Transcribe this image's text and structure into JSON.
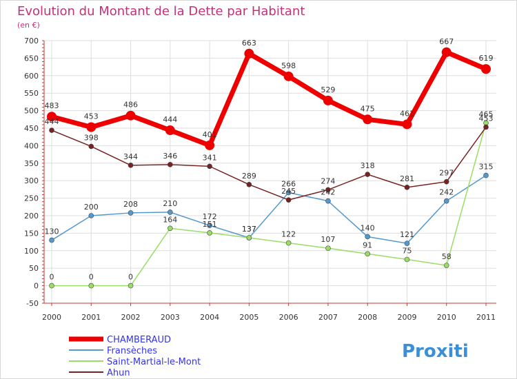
{
  "title": "Evolution du Montant de la Dette par Habitant",
  "subtitle": "(en €)",
  "logo_text": "Proxiti",
  "colors": {
    "title": "#c6307a",
    "grid": "#dddddd",
    "axis": "#cc3333",
    "legend_text": "#3333ee"
  },
  "chart_data": {
    "type": "line",
    "title": "Evolution du Montant de la Dette par Habitant",
    "subtitle": "(en €)",
    "categories": [
      "2000",
      "2001",
      "2002",
      "2003",
      "2004",
      "2005",
      "2006",
      "2007",
      "2008",
      "2009",
      "2010",
      "2011"
    ],
    "ylim": [
      -50,
      700
    ],
    "yticks": [
      -50,
      0,
      50,
      100,
      150,
      200,
      250,
      300,
      350,
      400,
      450,
      500,
      550,
      600,
      650,
      700
    ],
    "grid": true,
    "legend_position": "bottom-left",
    "series": [
      {
        "name": "CHAMBERAUD",
        "color": "#ee0000",
        "emphasis": true,
        "values": [
          483,
          453,
          486,
          444,
          401,
          663,
          598,
          529,
          475,
          461,
          667,
          619
        ]
      },
      {
        "name": "Fransèches",
        "color": "#5599cc",
        "emphasis": false,
        "values": [
          130,
          200,
          208,
          210,
          172,
          137,
          266,
          242,
          140,
          121,
          242,
          315
        ]
      },
      {
        "name": "Saint-Martial-le-Mont",
        "color": "#99dd66",
        "emphasis": false,
        "values": [
          0,
          0,
          0,
          164,
          151,
          137,
          122,
          107,
          91,
          75,
          58,
          465
        ]
      },
      {
        "name": "Ahun",
        "color": "#772222",
        "emphasis": false,
        "values": [
          444,
          398,
          344,
          346,
          341,
          289,
          245,
          274,
          318,
          281,
          297,
          453
        ]
      }
    ]
  }
}
